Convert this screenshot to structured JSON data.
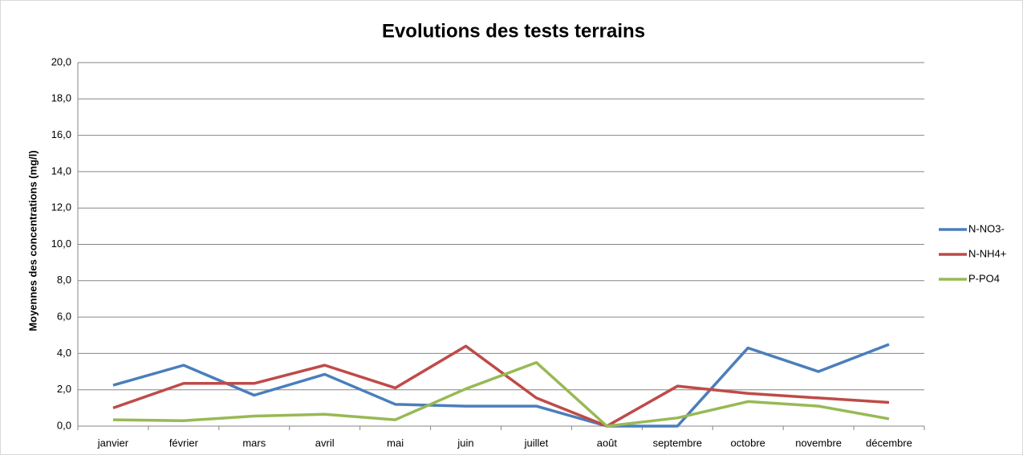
{
  "chart_data": {
    "type": "line",
    "title": "Evolutions des tests terrains",
    "y_label": "Moyennes des concentrations (mg/l)",
    "categories": [
      "janvier",
      "février",
      "mars",
      "avril",
      "mai",
      "juin",
      "juillet",
      "août",
      "septembre",
      "octobre",
      "novembre",
      "décembre"
    ],
    "series": [
      {
        "name": "N-NO3-",
        "color": "#4a7ebb",
        "values": [
          2.25,
          3.35,
          1.7,
          2.85,
          1.2,
          1.1,
          1.1,
          0,
          0,
          4.3,
          3.0,
          4.5
        ]
      },
      {
        "name": "N-NH4+",
        "color": "#be4b48",
        "values": [
          1.0,
          2.35,
          2.35,
          3.35,
          2.1,
          4.4,
          1.55,
          0,
          2.2,
          1.8,
          1.55,
          1.3
        ]
      },
      {
        "name": "P-PO4",
        "color": "#98b954",
        "values": [
          0.35,
          0.3,
          0.55,
          0.65,
          0.35,
          2.05,
          3.5,
          0,
          0.45,
          1.35,
          1.1,
          0.4
        ]
      }
    ],
    "ylim": [
      0,
      20
    ],
    "yticks": [
      {
        "value": 0,
        "label": "0,0"
      },
      {
        "value": 2,
        "label": "2,0"
      },
      {
        "value": 4,
        "label": "4,0"
      },
      {
        "value": 6,
        "label": "6,0"
      },
      {
        "value": 8,
        "label": "8,0"
      },
      {
        "value": 10,
        "label": "10,0"
      },
      {
        "value": 12,
        "label": "12,0"
      },
      {
        "value": 14,
        "label": "14,0"
      },
      {
        "value": 16,
        "label": "16,0"
      },
      {
        "value": 18,
        "label": "18,0"
      },
      {
        "value": 20,
        "label": "20,0"
      }
    ],
    "grid": true,
    "legend": "right"
  }
}
